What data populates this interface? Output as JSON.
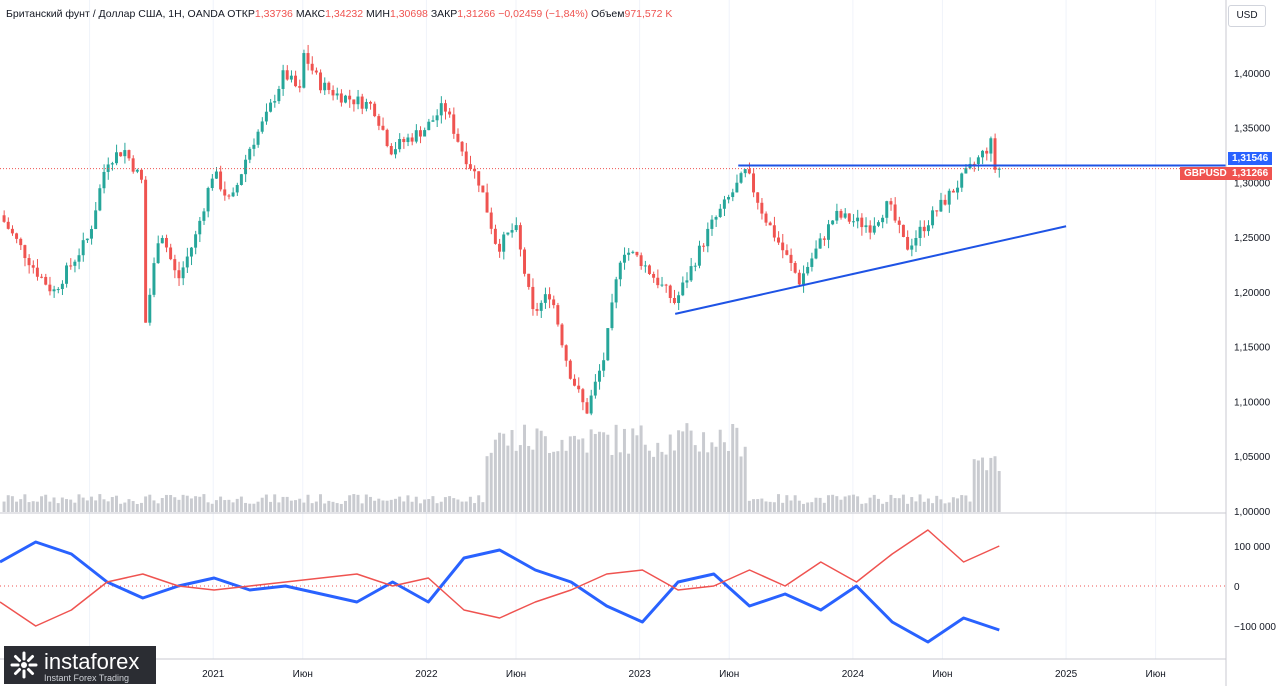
{
  "header": {
    "symbol": "Британский фунт / Доллар США, 1Н, OANDA",
    "open_label": "ОТКР",
    "open_value": "1,33736",
    "high_label": "МАКС",
    "high_value": "1,34232",
    "low_label": "МИН",
    "low_value": "1,30698",
    "close_label": "ЗАКР",
    "close_value": "1,31266",
    "change": "−0,02459 (−1,84%)",
    "volume_label": "Объем",
    "volume_value": "971,572 K"
  },
  "currency_button": "USD",
  "price_tags": {
    "line_level": "1,31546",
    "symbol_tag": "GBPUSD",
    "last_price": "1,31266"
  },
  "colors": {
    "up": "#26a69a",
    "down": "#ef5350",
    "trendline": "#2962ff",
    "volume": "#c9cbd0",
    "index_blue": "#2962ff",
    "index_red": "#ef5350"
  },
  "logo": {
    "brand": "instaforex",
    "tagline": "Instant Forex Trading"
  },
  "chart_data": [
    {
      "type": "candlestick",
      "title": "Британский фунт / Доллар США, 1Н, OANDA",
      "y_ticks": [
        "1,40000",
        "1,35000",
        "1,30000",
        "1,25000",
        "1,20000",
        "1,15000",
        "1,10000",
        "1,05000",
        "1,00000"
      ],
      "ylim": [
        1.0,
        1.42
      ],
      "x_ticks": [
        "Июн",
        "2021",
        "Июн",
        "2022",
        "Июн",
        "2023",
        "Июн",
        "2024",
        "Июн",
        "2025",
        "Июн"
      ],
      "price_path": [
        [
          "2020-01",
          1.27
        ],
        [
          "2020-03",
          1.22
        ],
        [
          "2020-04",
          1.2
        ],
        [
          "2020-06",
          1.25
        ],
        [
          "2020-07",
          1.32
        ],
        [
          "2020-08",
          1.33
        ],
        [
          "2020-09",
          1.3
        ],
        [
          "2020-09",
          1.15
        ],
        [
          "2020-10",
          1.26
        ],
        [
          "2020-11",
          1.21
        ],
        [
          "2020-12",
          1.25
        ],
        [
          "2021-01",
          1.31
        ],
        [
          "2021-02",
          1.28
        ],
        [
          "2021-03",
          1.33
        ],
        [
          "2021-04",
          1.36
        ],
        [
          "2021-05",
          1.4
        ],
        [
          "2021-06",
          1.38
        ],
        [
          "2021-06",
          1.42
        ],
        [
          "2021-07",
          1.39
        ],
        [
          "2021-08",
          1.38
        ],
        [
          "2021-10",
          1.37
        ],
        [
          "2021-11",
          1.33
        ],
        [
          "2022-01",
          1.35
        ],
        [
          "2022-02",
          1.37
        ],
        [
          "2022-03",
          1.33
        ],
        [
          "2022-04",
          1.3
        ],
        [
          "2022-05",
          1.24
        ],
        [
          "2022-06",
          1.26
        ],
        [
          "2022-07",
          1.18
        ],
        [
          "2022-08",
          1.2
        ],
        [
          "2022-09",
          1.13
        ],
        [
          "2022-10",
          1.09
        ],
        [
          "2022-11",
          1.14
        ],
        [
          "2022-12",
          1.24
        ],
        [
          "2023-01",
          1.23
        ],
        [
          "2023-03",
          1.19
        ],
        [
          "2023-05",
          1.26
        ],
        [
          "2023-07",
          1.31
        ],
        [
          "2023-08",
          1.27
        ],
        [
          "2023-10",
          1.21
        ],
        [
          "2023-12",
          1.27
        ],
        [
          "2024-02",
          1.26
        ],
        [
          "2024-03",
          1.28
        ],
        [
          "2024-04",
          1.24
        ],
        [
          "2024-06",
          1.28
        ],
        [
          "2024-07",
          1.3
        ],
        [
          "2024-08",
          1.32
        ],
        [
          "2024-09",
          1.34
        ],
        [
          "2024-09",
          1.3127
        ]
      ],
      "horizontal_line": 1.31546,
      "last_price": 1.31266,
      "trendline": {
        "from": [
          "2023-03",
          1.18
        ],
        "to": [
          "2025-01",
          1.26
        ]
      },
      "volume_baseline_y_tick": "1,00000"
    },
    {
      "type": "line",
      "y_ticks": [
        "100 000",
        "0",
        "−100 000"
      ],
      "series": [
        {
          "color": "#2962ff",
          "values": [
            60000,
            110000,
            80000,
            10000,
            -30000,
            0,
            20000,
            -10000,
            0,
            -20000,
            -40000,
            10000,
            -40000,
            70000,
            90000,
            40000,
            10000,
            -50000,
            -90000,
            10000,
            30000,
            -50000,
            -20000,
            -60000,
            0,
            -90000,
            -140000,
            -80000,
            -110000
          ]
        },
        {
          "color": "#ef5350",
          "values": [
            -40000,
            -100000,
            -60000,
            10000,
            30000,
            0,
            -10000,
            0,
            10000,
            20000,
            30000,
            0,
            20000,
            -60000,
            -80000,
            -40000,
            -10000,
            30000,
            40000,
            -10000,
            0,
            40000,
            0,
            60000,
            10000,
            80000,
            140000,
            60000,
            100000
          ]
        }
      ]
    }
  ]
}
